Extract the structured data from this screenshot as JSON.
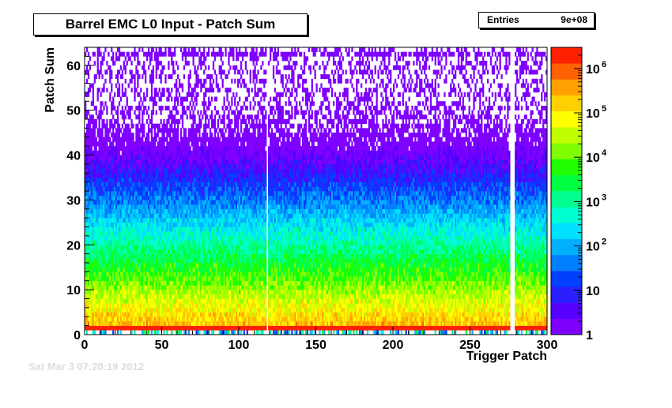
{
  "chart_data": {
    "type": "heatmap",
    "title": "Barrel EMC L0 Input - Patch Sum",
    "xlabel": "Trigger Patch",
    "ylabel": "Patch Sum",
    "xlim": [
      0,
      300
    ],
    "ylim": [
      0,
      64
    ],
    "x_ticks": [
      0,
      50,
      100,
      150,
      200,
      250,
      300
    ],
    "y_ticks": [
      0,
      10,
      20,
      30,
      40,
      50,
      60
    ],
    "z_scale": "log",
    "z_range": [
      1,
      3000000
    ],
    "z_ticks": [
      {
        "value": 1,
        "label": "1"
      },
      {
        "value": 10,
        "label": "10"
      },
      {
        "value": 100,
        "label": "10",
        "exp": "2"
      },
      {
        "value": 1000,
        "label": "10",
        "exp": "3"
      },
      {
        "value": 10000,
        "label": "10",
        "exp": "4"
      },
      {
        "value": 100000,
        "label": "10",
        "exp": "5"
      },
      {
        "value": 1000000,
        "label": "10",
        "exp": "6"
      }
    ],
    "palette": [
      "#7f00ff",
      "#5500ff",
      "#2a20ff",
      "#0040ff",
      "#0080ff",
      "#00b0ff",
      "#00e0ff",
      "#00ffd0",
      "#00ff90",
      "#00ff40",
      "#20ff00",
      "#80ff00",
      "#c0ff00",
      "#ffff00",
      "#ffd000",
      "#ffa000",
      "#ff6000",
      "#ff2000"
    ],
    "stats": {
      "entries_label": "Entries",
      "entries_value": "9e+08"
    },
    "empty_patches": [
      118,
      276,
      277,
      278
    ],
    "peak_bin": {
      "y": 1,
      "z": 2000000
    }
  },
  "footer": {
    "text": "Sat Mar  3 07:20:19 2012"
  }
}
